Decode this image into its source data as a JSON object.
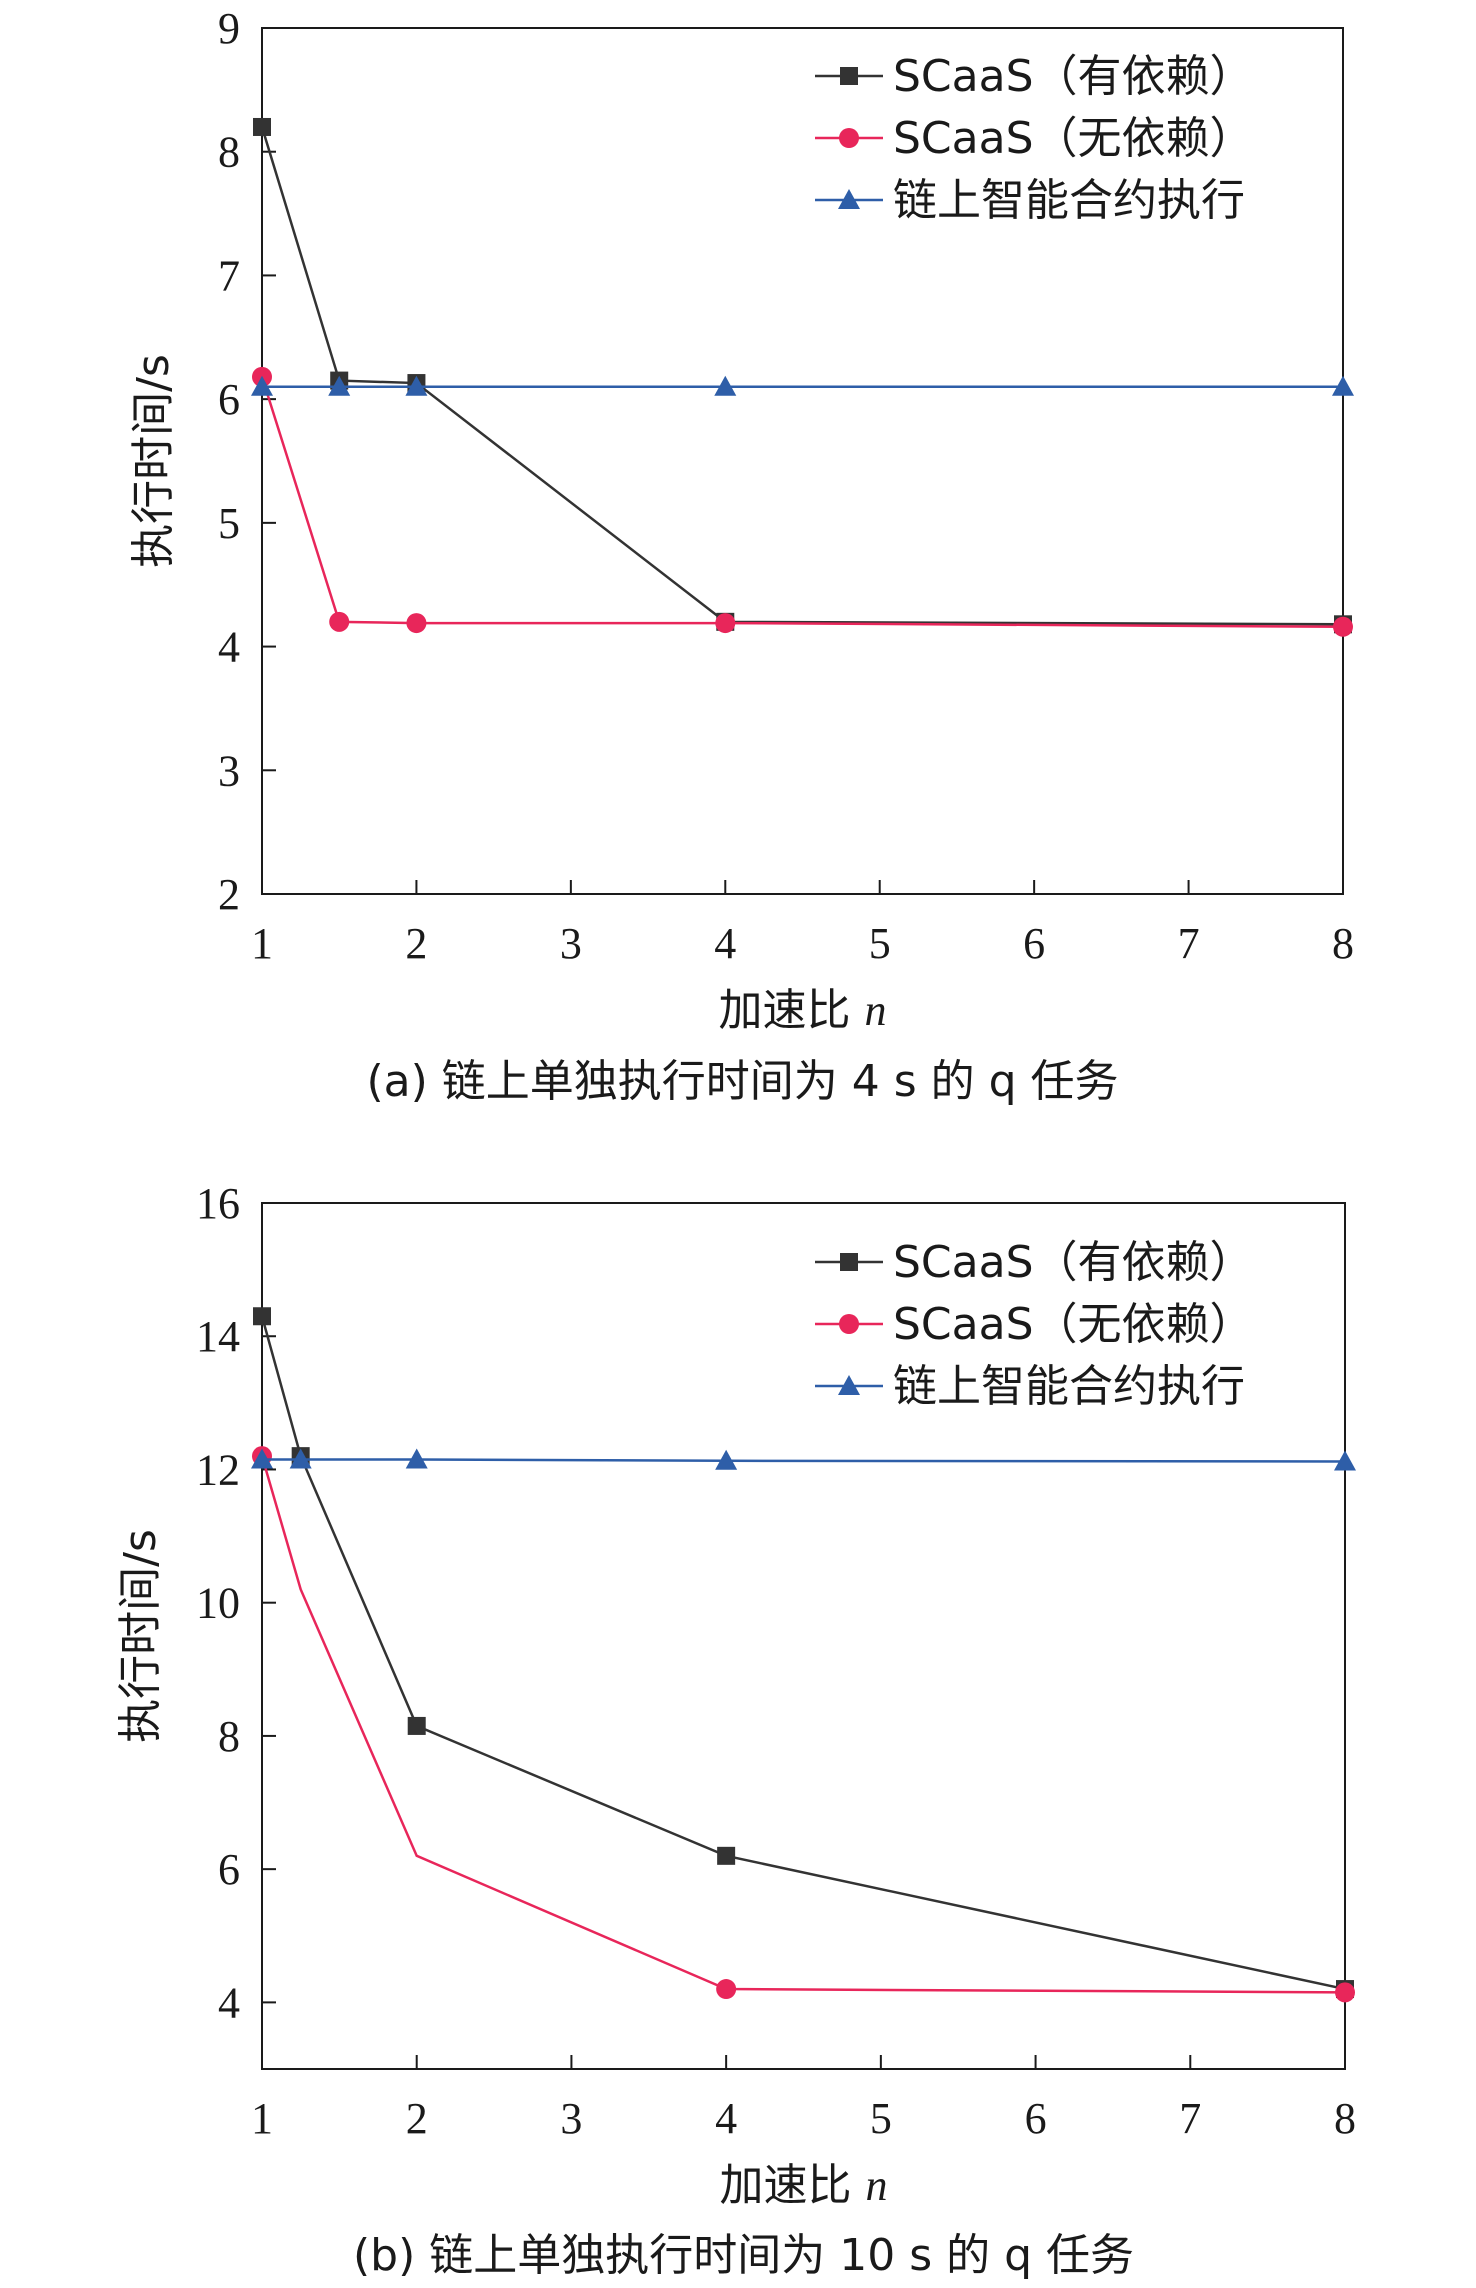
{
  "chart_data": [
    {
      "type": "line",
      "caption": "(a) 链上单独执行时间为 4 s 的 q 任务",
      "xlabel": "加速比",
      "xlabel_var": "n",
      "ylabel": "执行时间/s",
      "xlim": [
        1,
        8
      ],
      "ylim": [
        2,
        9
      ],
      "xticks": [
        1,
        2,
        3,
        4,
        5,
        6,
        7,
        8
      ],
      "yticks": [
        2,
        3,
        4,
        5,
        6,
        7,
        8,
        9
      ],
      "legend_position": "top-right",
      "series": [
        {
          "name": "SCaaS（有依赖）",
          "color": "#333333",
          "marker": "square",
          "x": [
            1,
            1.5,
            2,
            4,
            8
          ],
          "y": [
            8.2,
            6.15,
            6.13,
            4.2,
            4.18
          ]
        },
        {
          "name": "SCaaS（无依赖）",
          "color": "#e8265a",
          "marker": "circle",
          "x": [
            1,
            1.5,
            2,
            4,
            8
          ],
          "y": [
            6.18,
            4.2,
            4.19,
            4.19,
            4.16
          ]
        },
        {
          "name": "链上智能合约执行",
          "color": "#2e5ea8",
          "marker": "triangle",
          "x": [
            1,
            1.5,
            2,
            4,
            8
          ],
          "y": [
            6.1,
            6.1,
            6.1,
            6.1,
            6.1
          ]
        }
      ]
    },
    {
      "type": "line",
      "caption": "(b) 链上单独执行时间为 10 s 的 q 任务",
      "xlabel": "加速比",
      "xlabel_var": "n",
      "ylabel": "执行时间/s",
      "xlim": [
        1,
        8
      ],
      "ylim": [
        3,
        16
      ],
      "xticks": [
        1,
        2,
        3,
        4,
        5,
        6,
        7,
        8
      ],
      "yticks": [
        4,
        6,
        8,
        10,
        12,
        14,
        16
      ],
      "legend_position": "top-right",
      "series": [
        {
          "name": "SCaaS（有依赖）",
          "color": "#333333",
          "marker": "square",
          "x": [
            1,
            1.25,
            2,
            4,
            8
          ],
          "y": [
            14.3,
            12.2,
            8.15,
            6.2,
            4.2
          ],
          "markers_at": [
            0,
            1,
            2,
            3,
            4
          ]
        },
        {
          "name": "SCaaS（无依赖）",
          "color": "#e8265a",
          "marker": "circle",
          "x": [
            1,
            1.25,
            2,
            4,
            8
          ],
          "y": [
            12.2,
            10.2,
            6.2,
            4.2,
            4.15
          ],
          "markers_at": [
            0,
            3,
            4
          ]
        },
        {
          "name": "链上智能合约执行",
          "color": "#2e5ea8",
          "marker": "triangle",
          "x": [
            1,
            1.25,
            2,
            4,
            8
          ],
          "y": [
            12.15,
            12.15,
            12.15,
            12.13,
            12.12
          ],
          "markers_at": [
            0,
            1,
            2,
            3,
            4
          ]
        }
      ]
    }
  ]
}
